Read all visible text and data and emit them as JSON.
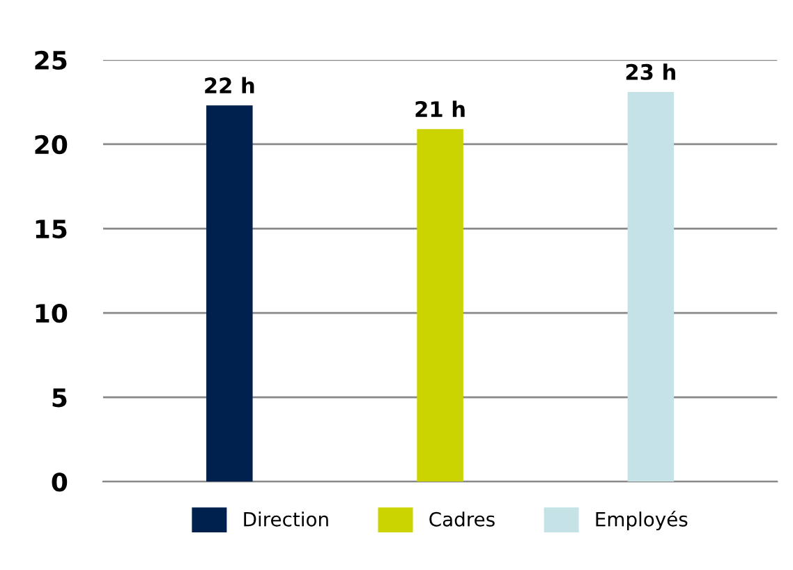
{
  "chart_data": {
    "type": "bar",
    "categories": [
      null,
      null,
      null
    ],
    "series": [
      {
        "name": "Direction",
        "color": "#00214d",
        "values": [
          22.3,
          null,
          null
        ],
        "value_labels": [
          "22 h",
          null,
          null
        ]
      },
      {
        "name": "Cadres",
        "color": "#cbd400",
        "values": [
          null,
          20.9,
          null
        ],
        "value_labels": [
          null,
          "21 h",
          null
        ]
      },
      {
        "name": "Employés",
        "color": "#c5e3e7",
        "values": [
          null,
          null,
          23.1
        ],
        "value_labels": [
          null,
          null,
          "23 h"
        ]
      }
    ],
    "ylim": [
      0,
      25
    ],
    "yticks": [
      0,
      5,
      10,
      15,
      20,
      25
    ],
    "grid": "y",
    "legend": "bottom"
  }
}
